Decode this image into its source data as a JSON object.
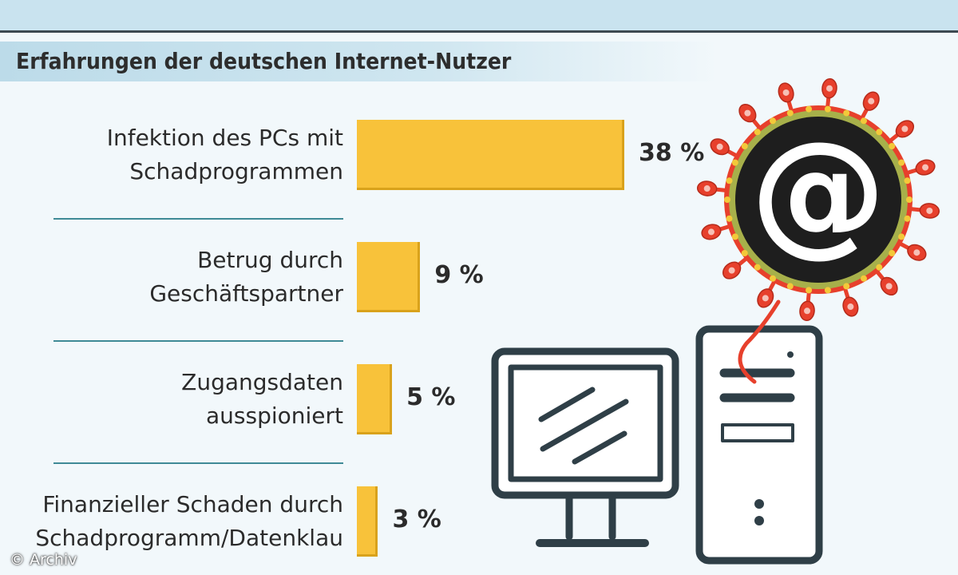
{
  "subtitle": "Erfahrungen der deutschen Internet-Nutzer",
  "credit": "© Archiv",
  "colors": {
    "bar": "#f8c23a",
    "bar_border": "#d9a21b",
    "separator": "#3f8a96",
    "header_band": "#c9e3ef"
  },
  "icons": [
    "at-sign-virus-icon",
    "computer-monitor-icon",
    "computer-tower-icon"
  ],
  "chart_data": {
    "type": "bar",
    "orientation": "horizontal",
    "categories": [
      "Infektion des PCs mit\nSchadprogrammen",
      "Betrug durch\nGeschäftspartner",
      "Zugangsdaten\nausspioniert",
      "Finanzieller Schaden durch\nSchadprogramm/Datenklau"
    ],
    "values": [
      38,
      9,
      5,
      3
    ],
    "value_labels": [
      "38 %",
      "9 %",
      "5 %",
      "3 %"
    ],
    "unit": "%",
    "title": "Erfahrungen der deutschen Internet-Nutzer",
    "xlim": [
      0,
      38
    ],
    "grid": false
  }
}
